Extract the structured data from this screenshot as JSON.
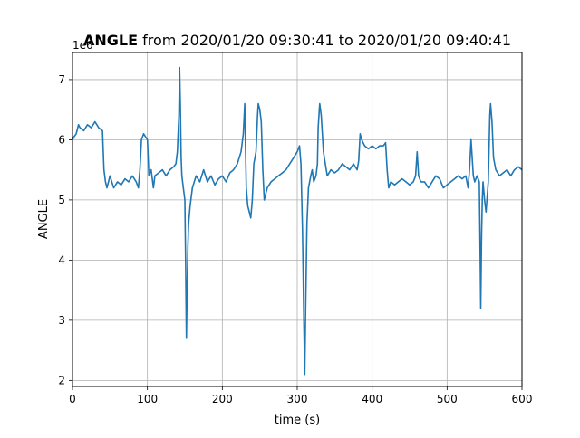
{
  "chart_data": {
    "type": "line",
    "title_bold": "ANGLE",
    "title_rest": " from 2020/01/20 09:30:41 to 2020/01/20 09:40:41",
    "xlabel": "time (s)",
    "ylabel": "ANGLE",
    "offset_text": "1e6",
    "xlim": [
      0,
      600
    ],
    "ylim": [
      1.9,
      7.45
    ],
    "grid": true,
    "x_ticks": [
      0,
      100,
      200,
      300,
      400,
      500,
      600
    ],
    "x_tick_labels": [
      "0",
      "100",
      "200",
      "300",
      "400",
      "500",
      "600"
    ],
    "y_ticks": [
      2,
      3,
      4,
      5,
      6,
      7
    ],
    "y_tick_labels": [
      "2",
      "3",
      "4",
      "5",
      "6",
      "7"
    ],
    "colors": {
      "series": "#1f77b4",
      "grid": "#b0b0b0",
      "axes": "#000000"
    },
    "series": [
      {
        "x": [
          0,
          2,
          5,
          8,
          10,
          15,
          20,
          25,
          30,
          35,
          40,
          42,
          44,
          46,
          48,
          50,
          55,
          60,
          65,
          70,
          75,
          80,
          85,
          88,
          90,
          92,
          95,
          100,
          102,
          105,
          108,
          110,
          115,
          120,
          125,
          130,
          135,
          138,
          140,
          142,
          143,
          144,
          145,
          146,
          148,
          150,
          151,
          152,
          153,
          154,
          155,
          157,
          160,
          165,
          170,
          175,
          180,
          185,
          190,
          195,
          200,
          205,
          210,
          215,
          220,
          225,
          228,
          230,
          231,
          232,
          234,
          236,
          238,
          240,
          242,
          245,
          247,
          248,
          250,
          252,
          254,
          256,
          258,
          260,
          265,
          270,
          275,
          280,
          285,
          290,
          295,
          300,
          303,
          305,
          307,
          309,
          310,
          311,
          312,
          313,
          315,
          318,
          320,
          322,
          325,
          327,
          328,
          330,
          332,
          335,
          340,
          345,
          350,
          355,
          360,
          365,
          370,
          375,
          380,
          382,
          384,
          386,
          390,
          395,
          400,
          405,
          410,
          415,
          418,
          420,
          422,
          425,
          430,
          435,
          440,
          445,
          450,
          455,
          458,
          460,
          462,
          465,
          470,
          475,
          480,
          485,
          490,
          495,
          500,
          505,
          510,
          515,
          520,
          525,
          528,
          530,
          532,
          535,
          537,
          540,
          543,
          544,
          545,
          546,
          547,
          548,
          550,
          552,
          555,
          557,
          558,
          560,
          562,
          565,
          570,
          575,
          580,
          585,
          590,
          595,
          600
        ],
        "y": [
          6.0,
          6.05,
          6.1,
          6.25,
          6.2,
          6.15,
          6.25,
          6.2,
          6.3,
          6.2,
          6.15,
          5.5,
          5.3,
          5.2,
          5.3,
          5.4,
          5.2,
          5.3,
          5.25,
          5.35,
          5.3,
          5.4,
          5.3,
          5.2,
          5.5,
          6.0,
          6.1,
          6.0,
          5.4,
          5.5,
          5.2,
          5.4,
          5.45,
          5.5,
          5.4,
          5.5,
          5.55,
          5.6,
          5.8,
          6.4,
          7.2,
          6.6,
          5.7,
          5.4,
          5.2,
          5.0,
          4.0,
          2.7,
          3.5,
          4.2,
          4.6,
          4.9,
          5.2,
          5.4,
          5.3,
          5.5,
          5.3,
          5.4,
          5.25,
          5.35,
          5.4,
          5.3,
          5.45,
          5.5,
          5.6,
          5.8,
          6.1,
          6.6,
          5.8,
          5.2,
          4.9,
          4.8,
          4.7,
          5.0,
          5.6,
          5.8,
          6.4,
          6.6,
          6.5,
          6.3,
          5.5,
          5.0,
          5.1,
          5.2,
          5.3,
          5.35,
          5.4,
          5.45,
          5.5,
          5.6,
          5.7,
          5.8,
          5.9,
          5.6,
          4.5,
          2.9,
          2.1,
          3.0,
          3.8,
          4.6,
          5.2,
          5.4,
          5.5,
          5.3,
          5.4,
          5.6,
          6.2,
          6.6,
          6.4,
          5.8,
          5.4,
          5.5,
          5.45,
          5.5,
          5.6,
          5.55,
          5.5,
          5.6,
          5.5,
          5.65,
          6.1,
          6.0,
          5.9,
          5.85,
          5.9,
          5.85,
          5.9,
          5.9,
          5.95,
          5.5,
          5.2,
          5.3,
          5.25,
          5.3,
          5.35,
          5.3,
          5.25,
          5.3,
          5.4,
          5.8,
          5.4,
          5.3,
          5.3,
          5.2,
          5.3,
          5.4,
          5.35,
          5.2,
          5.25,
          5.3,
          5.35,
          5.4,
          5.35,
          5.4,
          5.2,
          5.5,
          6.0,
          5.4,
          5.3,
          5.4,
          5.3,
          4.3,
          3.2,
          4.4,
          5.0,
          5.3,
          5.0,
          4.8,
          5.3,
          6.4,
          6.6,
          6.3,
          5.7,
          5.5,
          5.4,
          5.45,
          5.5,
          5.4,
          5.5,
          5.55,
          5.5
        ]
      }
    ]
  }
}
